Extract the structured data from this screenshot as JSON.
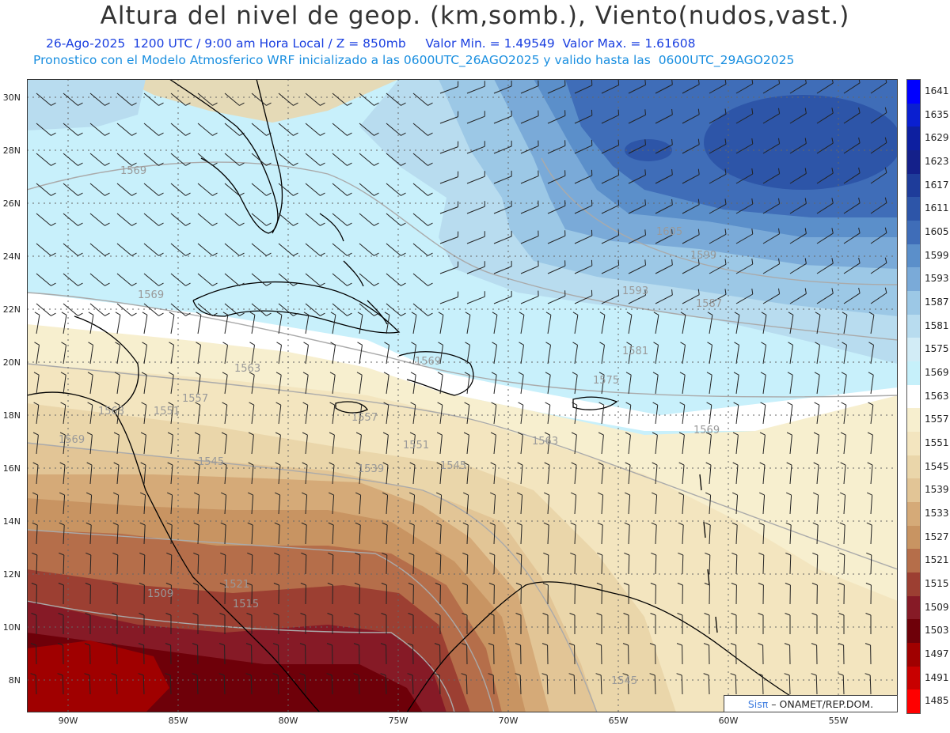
{
  "header": {
    "title": "Altura del nivel de geop. (km,somb.), Viento(nudos,vast.)",
    "line2": "26-Ago-2025  1200 UTC / 9:00 am Hora Local / Z = 850mb     Valor Min. = 1.49549  Valor Max. = 1.61608",
    "line3": "Pronostico con el Modelo Atmosferico WRF inicializado a las 0600UTC_26AGO2025 y valido hasta las  0600UTC_29AGO2025"
  },
  "axes": {
    "lat_labels": [
      "30N",
      "28N",
      "26N",
      "24N",
      "22N",
      "20N",
      "18N",
      "16N",
      "14N",
      "12N",
      "10N",
      "8N"
    ],
    "lon_labels": [
      "90W",
      "85W",
      "80W",
      "75W",
      "70W",
      "65W",
      "60W",
      "55W"
    ]
  },
  "legend": {
    "labels": [
      "1641",
      "1635",
      "1629",
      "1623",
      "1617",
      "1611",
      "1605",
      "1599",
      "1593",
      "1587",
      "1581",
      "1575",
      "1569",
      "1563",
      "1557",
      "1551",
      "1545",
      "1539",
      "1533",
      "1527",
      "1521",
      "1515",
      "1509",
      "1503",
      "1497",
      "1491",
      "1485"
    ],
    "colors": [
      "#0000ff",
      "#0a1fd0",
      "#0d1fa0",
      "#14208a",
      "#1e3c9a",
      "#2d55a8",
      "#3f6db8",
      "#5b8fca",
      "#7aaad8",
      "#9cc8e6",
      "#b8dcef",
      "#d2ecf6",
      "#c6f0fa",
      "#ffffff",
      "#f7efcf",
      "#f3e5bf",
      "#ead6aa",
      "#e2c596",
      "#d5aa78",
      "#c89462",
      "#b56e4a",
      "#9c3f32",
      "#861a26",
      "#6e0009",
      "#a00000",
      "#c80000",
      "#ff0000"
    ]
  },
  "contour_labels": [
    "1569",
    "1569",
    "1569",
    "1563",
    "1557",
    "1551",
    "1545",
    "1539",
    "1545",
    "1551",
    "1557",
    "1563",
    "1569",
    "1575",
    "1581",
    "1587",
    "1593",
    "1599",
    "1605",
    "1521",
    "1515",
    "1509",
    "1545",
    "1563",
    "1569"
  ],
  "footer": {
    "brand": "Sisπ",
    "text": "– ONAMET/REP.DOM."
  }
}
